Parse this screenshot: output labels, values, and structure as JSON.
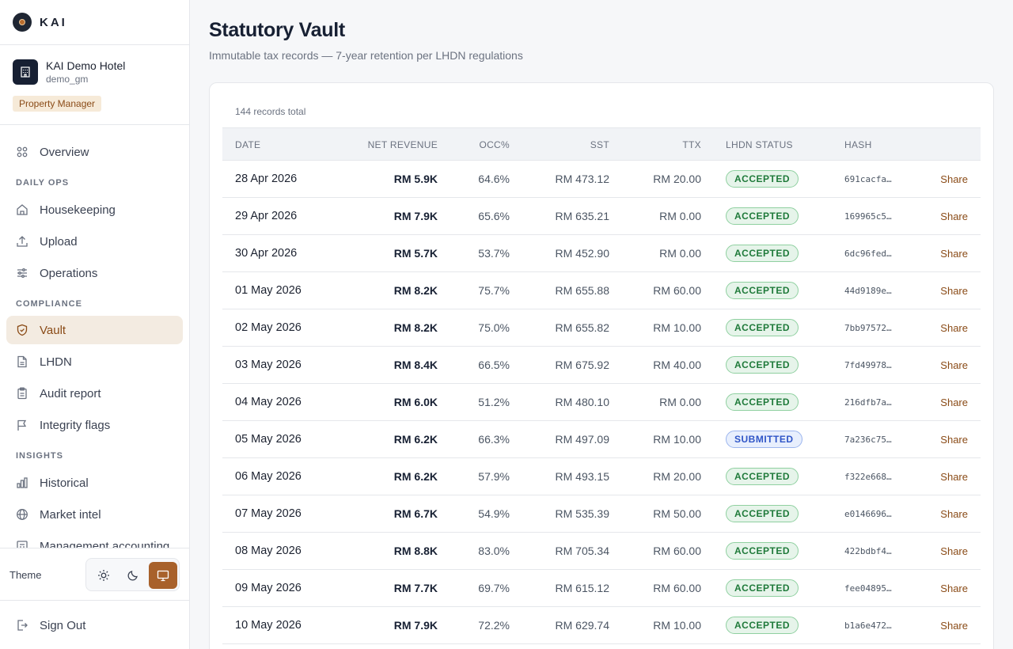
{
  "brand": {
    "name": "KAI"
  },
  "property": {
    "name": "KAI Demo Hotel",
    "user": "demo_gm",
    "role": "Property Manager"
  },
  "nav": {
    "overview": "Overview",
    "sections": {
      "daily_ops": "DAILY OPS",
      "compliance": "COMPLIANCE",
      "insights": "INSIGHTS"
    },
    "housekeeping": "Housekeeping",
    "upload": "Upload",
    "operations": "Operations",
    "vault": "Vault",
    "lhdn": "LHDN",
    "audit_report": "Audit report",
    "integrity_flags": "Integrity flags",
    "historical": "Historical",
    "market_intel": "Market intel",
    "management_accounting": "Management accounting",
    "active": "Vault"
  },
  "theme": {
    "label": "Theme",
    "options": [
      "sun-icon",
      "moon-icon",
      "monitor-icon"
    ],
    "selected": "monitor-icon"
  },
  "signout": {
    "label": "Sign Out"
  },
  "page": {
    "title": "Statutory Vault",
    "subtitle": "Immutable tax records — 7-year retention per LHDN regulations"
  },
  "table": {
    "total": "144 records total",
    "columns": {
      "date": "DATE",
      "net_revenue": "NET REVENUE",
      "occ": "OCC%",
      "sst": "SST",
      "ttx": "TTX",
      "lhdn_status": "LHDN STATUS",
      "hash": "HASH"
    },
    "share_label": "Share",
    "rows": [
      {
        "date": "28 Apr 2026",
        "net": "RM 5.9K",
        "occ": "64.6%",
        "sst": "RM 473.12",
        "ttx": "RM 20.00",
        "status": "ACCEPTED",
        "hash": "691cacfa…"
      },
      {
        "date": "29 Apr 2026",
        "net": "RM 7.9K",
        "occ": "65.6%",
        "sst": "RM 635.21",
        "ttx": "RM 0.00",
        "status": "ACCEPTED",
        "hash": "169965c5…"
      },
      {
        "date": "30 Apr 2026",
        "net": "RM 5.7K",
        "occ": "53.7%",
        "sst": "RM 452.90",
        "ttx": "RM 0.00",
        "status": "ACCEPTED",
        "hash": "6dc96fed…"
      },
      {
        "date": "01 May 2026",
        "net": "RM 8.2K",
        "occ": "75.7%",
        "sst": "RM 655.88",
        "ttx": "RM 60.00",
        "status": "ACCEPTED",
        "hash": "44d9189e…"
      },
      {
        "date": "02 May 2026",
        "net": "RM 8.2K",
        "occ": "75.0%",
        "sst": "RM 655.82",
        "ttx": "RM 10.00",
        "status": "ACCEPTED",
        "hash": "7bb97572…"
      },
      {
        "date": "03 May 2026",
        "net": "RM 8.4K",
        "occ": "66.5%",
        "sst": "RM 675.92",
        "ttx": "RM 40.00",
        "status": "ACCEPTED",
        "hash": "7fd49978…"
      },
      {
        "date": "04 May 2026",
        "net": "RM 6.0K",
        "occ": "51.2%",
        "sst": "RM 480.10",
        "ttx": "RM 0.00",
        "status": "ACCEPTED",
        "hash": "216dfb7a…"
      },
      {
        "date": "05 May 2026",
        "net": "RM 6.2K",
        "occ": "66.3%",
        "sst": "RM 497.09",
        "ttx": "RM 10.00",
        "status": "SUBMITTED",
        "hash": "7a236c75…"
      },
      {
        "date": "06 May 2026",
        "net": "RM 6.2K",
        "occ": "57.9%",
        "sst": "RM 493.15",
        "ttx": "RM 20.00",
        "status": "ACCEPTED",
        "hash": "f322e668…"
      },
      {
        "date": "07 May 2026",
        "net": "RM 6.7K",
        "occ": "54.9%",
        "sst": "RM 535.39",
        "ttx": "RM 50.00",
        "status": "ACCEPTED",
        "hash": "e0146696…"
      },
      {
        "date": "08 May 2026",
        "net": "RM 8.8K",
        "occ": "83.0%",
        "sst": "RM 705.34",
        "ttx": "RM 60.00",
        "status": "ACCEPTED",
        "hash": "422bdbf4…"
      },
      {
        "date": "09 May 2026",
        "net": "RM 7.7K",
        "occ": "69.7%",
        "sst": "RM 615.12",
        "ttx": "RM 60.00",
        "status": "ACCEPTED",
        "hash": "fee04895…"
      },
      {
        "date": "10 May 2026",
        "net": "RM 7.9K",
        "occ": "72.2%",
        "sst": "RM 629.74",
        "ttx": "RM 10.00",
        "status": "ACCEPTED",
        "hash": "b1a6e472…"
      }
    ]
  },
  "colors": {
    "accent": "#a8612b",
    "accepted": "#1f7a3a",
    "submitted": "#2f55c7"
  }
}
